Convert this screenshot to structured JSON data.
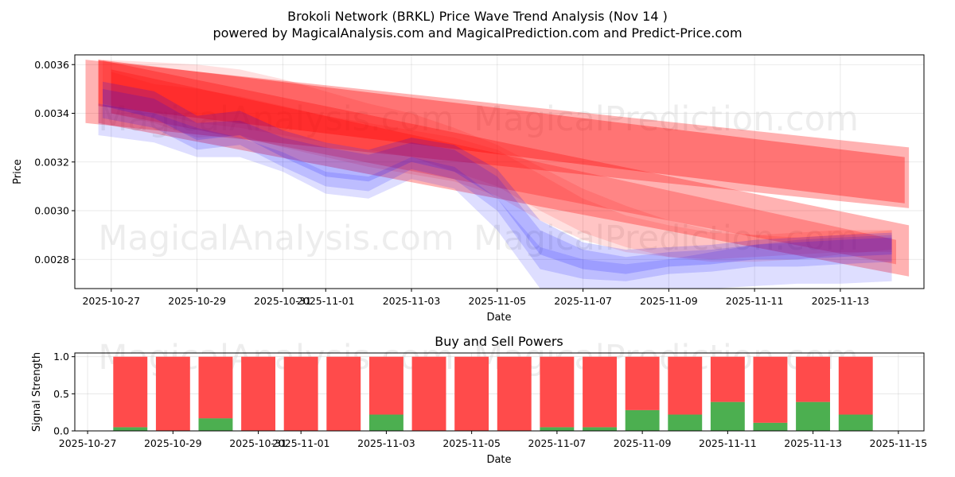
{
  "title": "Brokoli Network (BRKL) Price Wave Trend Analysis (Nov 14 )",
  "subtitle": "powered by MagicalAnalysis.com and MagicalPrediction.com and Predict-Price.com",
  "watermarks": [
    "MagicalAnalysis.com",
    "MagicalPrediction.com",
    "MagicalAnalysis.com",
    "MagicalPrediction.com",
    "MagicalAnalysis.com",
    "MagicalPrediction.com"
  ],
  "colors": {
    "red": "#ff0000",
    "blue": "#0000ff",
    "buy": "#4caf50",
    "sell": "#ff4b4b"
  },
  "chart_data": [
    {
      "type": "area",
      "title": "",
      "xlabel": "Date",
      "ylabel": "Price",
      "x_range": [
        -0.85,
        18.95
      ],
      "ylim": [
        0.00268,
        0.00364
      ],
      "grid": true,
      "xtick_positions": [
        0,
        2,
        4,
        5,
        7,
        9,
        11,
        13,
        15,
        17
      ],
      "xtick_labels": [
        "2025-10-27",
        "2025-10-29",
        "2025-10-31",
        "2025-11-01",
        "2025-11-03",
        "2025-11-05",
        "2025-11-07",
        "2025-11-09",
        "2025-11-11",
        "2025-11-13"
      ],
      "ytick_values": [
        0.0028,
        0.003,
        0.0032,
        0.0034,
        0.0036
      ],
      "ytick_labels": [
        "0.0028",
        "0.0030",
        "0.0032",
        "0.0034",
        "0.0036"
      ],
      "series": [
        {
          "name": "red-band-upper-trend",
          "color": "red",
          "opacity": 0.3,
          "x": [
            -0.6,
            18.6
          ],
          "upper": [
            0.00362,
            0.00326
          ],
          "lower": [
            0.00336,
            0.00301
          ]
        },
        {
          "name": "red-band-upper-trend-core",
          "color": "red",
          "opacity": 0.35,
          "x": [
            -0.3,
            18.5
          ],
          "upper": [
            0.00362,
            0.00322
          ],
          "lower": [
            0.00343,
            0.00303
          ]
        },
        {
          "name": "red-band-lower-trend",
          "color": "red",
          "opacity": 0.3,
          "x": [
            -0.3,
            18.6
          ],
          "upper": [
            0.00362,
            0.00294
          ],
          "lower": [
            0.00336,
            0.00273
          ]
        },
        {
          "name": "red-band-lower-trend-core",
          "color": "red",
          "opacity": 0.25,
          "x": [
            0,
            18.3
          ],
          "upper": [
            0.00358,
            0.00288
          ],
          "lower": [
            0.0034,
            0.00278
          ]
        },
        {
          "name": "red-wave-1",
          "color": "red",
          "opacity": 0.12,
          "x": [
            -0.2,
            1,
            2,
            3,
            4,
            5,
            6,
            7,
            8,
            9,
            10,
            11,
            12,
            13,
            14,
            15,
            16,
            17,
            18.2
          ],
          "upper": [
            0.00362,
            0.00361,
            0.0036,
            0.00358,
            0.00354,
            0.00349,
            0.00344,
            0.0034,
            0.00334,
            0.00327,
            0.00318,
            0.00309,
            0.00302,
            0.00296,
            0.00292,
            0.0029,
            0.00289,
            0.0029,
            0.00292
          ],
          "lower": [
            0.00344,
            0.0034,
            0.00336,
            0.00334,
            0.00331,
            0.00328,
            0.00325,
            0.00322,
            0.00316,
            0.0031,
            0.003,
            0.00291,
            0.00285,
            0.00281,
            0.00279,
            0.00279,
            0.0028,
            0.00282,
            0.00284
          ]
        },
        {
          "name": "red-wave-2",
          "color": "red",
          "opacity": 0.12,
          "x": [
            0,
            1,
            2,
            3,
            4,
            5,
            6,
            7,
            8,
            9,
            10,
            11,
            12,
            13,
            14,
            15,
            16,
            17,
            18.2
          ],
          "upper": [
            0.00357,
            0.00352,
            0.0035,
            0.00347,
            0.00343,
            0.00339,
            0.00336,
            0.00333,
            0.0033,
            0.00325,
            0.00315,
            0.00305,
            0.00298,
            0.00294,
            0.00291,
            0.0029,
            0.00291,
            0.00292,
            0.00292
          ],
          "lower": [
            0.0034,
            0.00336,
            0.0033,
            0.00331,
            0.00326,
            0.00322,
            0.00318,
            0.00315,
            0.00312,
            0.00306,
            0.00296,
            0.00288,
            0.00283,
            0.00281,
            0.0028,
            0.00281,
            0.00282,
            0.00283,
            0.00283
          ]
        },
        {
          "name": "blue-wave-1",
          "color": "blue",
          "opacity": 0.13,
          "x": [
            -0.3,
            1,
            2,
            3,
            4,
            5,
            6,
            7,
            8,
            9,
            10,
            11,
            12,
            13,
            14,
            15,
            16,
            17,
            18.2
          ],
          "upper": [
            0.00344,
            0.0034,
            0.00334,
            0.0033,
            0.00324,
            0.00316,
            0.00314,
            0.00322,
            0.00318,
            0.00305,
            0.00285,
            0.0028,
            0.00278,
            0.0028,
            0.00283,
            0.00286,
            0.00288,
            0.00289,
            0.0029
          ],
          "lower": [
            0.00331,
            0.00328,
            0.00322,
            0.00322,
            0.00316,
            0.00307,
            0.00305,
            0.00313,
            0.00309,
            0.00292,
            0.00268,
            0.00268,
            0.00268,
            0.00268,
            0.00268,
            0.00269,
            0.0027,
            0.0027,
            0.00271
          ]
        },
        {
          "name": "blue-wave-2",
          "color": "blue",
          "opacity": 0.15,
          "x": [
            -0.2,
            1,
            2,
            3,
            4,
            5,
            6,
            7,
            8,
            9,
            10,
            11,
            12,
            13,
            14,
            15,
            16,
            17,
            18.2
          ],
          "upper": [
            0.0035,
            0.00346,
            0.00336,
            0.00337,
            0.0033,
            0.00326,
            0.00323,
            0.00328,
            0.00325,
            0.00314,
            0.00292,
            0.00284,
            0.00281,
            0.00283,
            0.00284,
            0.00286,
            0.00287,
            0.00288,
            0.00289
          ],
          "lower": [
            0.00338,
            0.00334,
            0.00325,
            0.00327,
            0.00318,
            0.0031,
            0.00308,
            0.00317,
            0.00313,
            0.003,
            0.00276,
            0.00272,
            0.00271,
            0.00274,
            0.00275,
            0.00277,
            0.00277,
            0.00278,
            0.00279
          ]
        },
        {
          "name": "blue-wave-3",
          "color": "blue",
          "opacity": 0.17,
          "x": [
            -0.2,
            1,
            2,
            3,
            4,
            5,
            6,
            7,
            8,
            9,
            10,
            11,
            12,
            13,
            14,
            15,
            16,
            17,
            18.2
          ],
          "upper": [
            0.00353,
            0.00349,
            0.00339,
            0.00341,
            0.00333,
            0.00328,
            0.00325,
            0.0033,
            0.00327,
            0.00317,
            0.00296,
            0.00287,
            0.00284,
            0.00285,
            0.00286,
            0.00288,
            0.00289,
            0.0029,
            0.00291
          ],
          "lower": [
            0.00343,
            0.00338,
            0.00329,
            0.00331,
            0.00322,
            0.00314,
            0.00312,
            0.0032,
            0.00316,
            0.00305,
            0.00282,
            0.00276,
            0.00274,
            0.00277,
            0.00278,
            0.0028,
            0.0028,
            0.00281,
            0.00282
          ]
        }
      ]
    },
    {
      "type": "bar",
      "title": "Buy and Sell Powers",
      "xlabel": "Date",
      "ylabel": "Signal Strength",
      "x_range": [
        -0.3,
        19.6
      ],
      "ylim": [
        0,
        1.05
      ],
      "grid": true,
      "xtick_positions": [
        0,
        2,
        4,
        5,
        7,
        9,
        11,
        13,
        15,
        17,
        19
      ],
      "xtick_labels": [
        "2025-10-27",
        "2025-10-29",
        "2025-10-31",
        "2025-11-01",
        "2025-11-03",
        "2025-11-05",
        "2025-11-07",
        "2025-11-09",
        "2025-11-11",
        "2025-11-13",
        "2025-11-15"
      ],
      "ytick_values": [
        0,
        0.5,
        1.0
      ],
      "ytick_labels": [
        "0.0",
        "0.5",
        "1.0"
      ],
      "x": [
        1,
        2,
        3,
        4,
        5,
        6,
        7,
        8,
        9,
        10,
        11,
        12,
        13,
        14,
        15,
        16,
        17,
        18
      ],
      "series": [
        {
          "name": "Buy",
          "color": "buy",
          "values": [
            0.05,
            0.0,
            0.17,
            0.0,
            0.0,
            0.0,
            0.22,
            0.0,
            0.0,
            0.0,
            0.05,
            0.05,
            0.28,
            0.22,
            0.39,
            0.11,
            0.39,
            0.22
          ]
        },
        {
          "name": "Sell",
          "color": "sell",
          "values": [
            0.95,
            1.0,
            0.83,
            1.0,
            1.0,
            1.0,
            0.78,
            1.0,
            1.0,
            1.0,
            0.95,
            0.95,
            0.72,
            0.78,
            0.61,
            0.89,
            0.61,
            0.78
          ]
        }
      ]
    }
  ]
}
